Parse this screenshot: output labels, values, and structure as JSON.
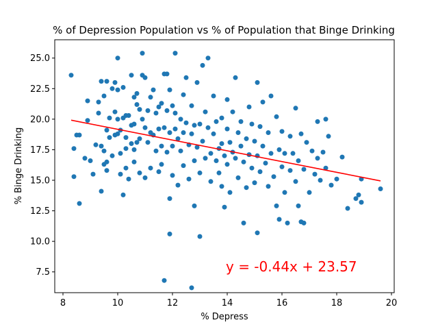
{
  "chart_data": {
    "type": "scatter",
    "title": "% of Depression Population vs % of Population that Binge Drinking",
    "xlabel": "% Depress",
    "ylabel": "% Binge Drinking",
    "xlim": [
      7.7,
      20.1
    ],
    "ylim": [
      5.8,
      26.5
    ],
    "xticks": [
      8,
      10,
      12,
      14,
      16,
      18,
      20
    ],
    "yticks": [
      7.5,
      10.0,
      12.5,
      15.0,
      17.5,
      20.0,
      22.5,
      25.0
    ],
    "grid": false,
    "point_color": "#1f77b4",
    "regression": {
      "slope": -0.44,
      "intercept": 23.57,
      "x_range": [
        8.3,
        19.6
      ],
      "color": "#ff0000",
      "equation": "y = -0.44x + 23.57",
      "equation_color": "#ff0000"
    },
    "points": [
      [
        8.3,
        23.6
      ],
      [
        8.4,
        17.6
      ],
      [
        8.4,
        15.3
      ],
      [
        8.5,
        18.7
      ],
      [
        8.6,
        18.7
      ],
      [
        8.6,
        13.1
      ],
      [
        8.8,
        16.8
      ],
      [
        8.9,
        19.9
      ],
      [
        8.9,
        21.5
      ],
      [
        9.0,
        16.6
      ],
      [
        9.1,
        15.5
      ],
      [
        9.2,
        17.9
      ],
      [
        9.3,
        21.4
      ],
      [
        9.3,
        20.5
      ],
      [
        9.4,
        23.1
      ],
      [
        9.4,
        17.8
      ],
      [
        9.4,
        14.1
      ],
      [
        9.5,
        21.9
      ],
      [
        9.5,
        17.4
      ],
      [
        9.5,
        16.3
      ],
      [
        9.6,
        23.1
      ],
      [
        9.6,
        16.5
      ],
      [
        9.6,
        15.8
      ],
      [
        9.6,
        19.1
      ],
      [
        9.7,
        20.1
      ],
      [
        9.7,
        18.5
      ],
      [
        9.8,
        22.5
      ],
      [
        9.8,
        17.0
      ],
      [
        9.9,
        23.0
      ],
      [
        9.9,
        20.6
      ],
      [
        9.9,
        18.7
      ],
      [
        10.0,
        25.0
      ],
      [
        10.0,
        22.4
      ],
      [
        10.0,
        20.0
      ],
      [
        10.0,
        18.8
      ],
      [
        10.1,
        19.1
      ],
      [
        10.1,
        17.2
      ],
      [
        10.1,
        15.5
      ],
      [
        10.2,
        22.6
      ],
      [
        10.2,
        20.1
      ],
      [
        10.2,
        13.8
      ],
      [
        10.3,
        20.3
      ],
      [
        10.3,
        18.5
      ],
      [
        10.3,
        17.6
      ],
      [
        10.3,
        16.0
      ],
      [
        10.4,
        20.3
      ],
      [
        10.4,
        15.1
      ],
      [
        10.5,
        23.6
      ],
      [
        10.5,
        19.5
      ],
      [
        10.5,
        18.0
      ],
      [
        10.6,
        21.8
      ],
      [
        10.6,
        19.6
      ],
      [
        10.6,
        17.5
      ],
      [
        10.6,
        16.5
      ],
      [
        10.7,
        22.1
      ],
      [
        10.7,
        21.2
      ],
      [
        10.7,
        18.1
      ],
      [
        10.8,
        20.8
      ],
      [
        10.8,
        18.4
      ],
      [
        10.8,
        15.6
      ],
      [
        10.9,
        23.6
      ],
      [
        10.9,
        20.0
      ],
      [
        10.9,
        25.4
      ],
      [
        11.0,
        23.4
      ],
      [
        11.0,
        19.3
      ],
      [
        11.0,
        15.2
      ],
      [
        11.1,
        20.7
      ],
      [
        11.1,
        18.1
      ],
      [
        11.2,
        21.8
      ],
      [
        11.2,
        18.9
      ],
      [
        11.2,
        16.0
      ],
      [
        11.3,
        22.4
      ],
      [
        11.3,
        18.7
      ],
      [
        11.4,
        20.5
      ],
      [
        11.4,
        17.4
      ],
      [
        11.5,
        21.0
      ],
      [
        11.5,
        19.2
      ],
      [
        11.5,
        15.7
      ],
      [
        11.6,
        21.3
      ],
      [
        11.6,
        17.8
      ],
      [
        11.6,
        16.3
      ],
      [
        11.7,
        23.7
      ],
      [
        11.7,
        19.3
      ],
      [
        11.7,
        6.8
      ],
      [
        11.8,
        20.7
      ],
      [
        11.8,
        17.3
      ],
      [
        11.8,
        23.7
      ],
      [
        11.9,
        22.4
      ],
      [
        11.9,
        18.9
      ],
      [
        11.9,
        13.5
      ],
      [
        11.9,
        10.6
      ],
      [
        12.0,
        21.1
      ],
      [
        12.0,
        17.8
      ],
      [
        12.0,
        15.4
      ],
      [
        12.1,
        20.5
      ],
      [
        12.1,
        19.2
      ],
      [
        12.1,
        25.4
      ],
      [
        12.2,
        18.4
      ],
      [
        12.2,
        14.6
      ],
      [
        12.3,
        20.0
      ],
      [
        12.3,
        17.4
      ],
      [
        12.4,
        22.0
      ],
      [
        12.4,
        18.9
      ],
      [
        12.4,
        16.2
      ],
      [
        12.5,
        19.7
      ],
      [
        12.5,
        23.4
      ],
      [
        12.6,
        17.9
      ],
      [
        12.6,
        15.1
      ],
      [
        12.7,
        18.8
      ],
      [
        12.7,
        21.1
      ],
      [
        12.7,
        6.2
      ],
      [
        12.8,
        19.5
      ],
      [
        12.8,
        16.6
      ],
      [
        12.8,
        12.9
      ],
      [
        12.9,
        23.0
      ],
      [
        12.9,
        17.7
      ],
      [
        13.0,
        19.6
      ],
      [
        13.0,
        15.6
      ],
      [
        13.0,
        10.4
      ],
      [
        13.1,
        18.2
      ],
      [
        13.1,
        24.4
      ],
      [
        13.2,
        20.6
      ],
      [
        13.2,
        16.8
      ],
      [
        13.3,
        19.3
      ],
      [
        13.3,
        25.0
      ],
      [
        13.4,
        17.2
      ],
      [
        13.4,
        14.9
      ],
      [
        13.5,
        18.8
      ],
      [
        13.5,
        21.9
      ],
      [
        13.6,
        16.6
      ],
      [
        13.6,
        19.8
      ],
      [
        13.7,
        17.6
      ],
      [
        13.7,
        15.6
      ],
      [
        13.8,
        20.1
      ],
      [
        13.8,
        18.0
      ],
      [
        13.8,
        14.5
      ],
      [
        13.9,
        12.8
      ],
      [
        13.9,
        17.0
      ],
      [
        14.0,
        21.6
      ],
      [
        14.0,
        19.2
      ],
      [
        14.0,
        16.3
      ],
      [
        14.1,
        18.1
      ],
      [
        14.1,
        14.0
      ],
      [
        14.2,
        17.3
      ],
      [
        14.2,
        20.6
      ],
      [
        14.3,
        23.4
      ],
      [
        14.3,
        16.8
      ],
      [
        14.4,
        18.9
      ],
      [
        14.4,
        15.2
      ],
      [
        14.5,
        17.8
      ],
      [
        14.5,
        19.8
      ],
      [
        14.6,
        16.5
      ],
      [
        14.6,
        11.5
      ],
      [
        14.7,
        18.4
      ],
      [
        14.7,
        14.4
      ],
      [
        14.8,
        17.1
      ],
      [
        14.8,
        21.0
      ],
      [
        14.9,
        19.6
      ],
      [
        14.9,
        16.0
      ],
      [
        15.0,
        18.2
      ],
      [
        15.0,
        14.8
      ],
      [
        15.1,
        23.0
      ],
      [
        15.1,
        17.0
      ],
      [
        15.1,
        10.7
      ],
      [
        15.2,
        19.4
      ],
      [
        15.2,
        15.7
      ],
      [
        15.3,
        17.8
      ],
      [
        15.3,
        21.4
      ],
      [
        15.4,
        16.4
      ],
      [
        15.5,
        18.9
      ],
      [
        15.5,
        14.5
      ],
      [
        15.6,
        21.9
      ],
      [
        15.6,
        17.2
      ],
      [
        15.7,
        15.3
      ],
      [
        15.8,
        20.2
      ],
      [
        15.8,
        12.9
      ],
      [
        15.9,
        17.5
      ],
      [
        15.9,
        11.8
      ],
      [
        16.0,
        19.0
      ],
      [
        16.0,
        16.1
      ],
      [
        16.1,
        17.2
      ],
      [
        16.1,
        14.0
      ],
      [
        16.2,
        11.5
      ],
      [
        16.3,
        18.6
      ],
      [
        16.3,
        15.8
      ],
      [
        16.4,
        17.2
      ],
      [
        16.5,
        20.9
      ],
      [
        16.5,
        14.9
      ],
      [
        16.6,
        16.6
      ],
      [
        16.6,
        12.9
      ],
      [
        16.7,
        18.8
      ],
      [
        16.7,
        11.6
      ],
      [
        16.8,
        15.9
      ],
      [
        16.8,
        11.5
      ],
      [
        16.9,
        18.1
      ],
      [
        17.0,
        14.0
      ],
      [
        17.1,
        17.4
      ],
      [
        17.2,
        15.5
      ],
      [
        17.3,
        19.8
      ],
      [
        17.3,
        16.8
      ],
      [
        17.4,
        15.0
      ],
      [
        17.5,
        17.3
      ],
      [
        17.6,
        20.0
      ],
      [
        17.6,
        16.0
      ],
      [
        17.7,
        18.6
      ],
      [
        17.8,
        14.6
      ],
      [
        18.0,
        15.1
      ],
      [
        18.2,
        16.9
      ],
      [
        18.4,
        12.7
      ],
      [
        18.7,
        13.5
      ],
      [
        18.8,
        13.8
      ],
      [
        18.9,
        15.1
      ],
      [
        18.9,
        13.2
      ],
      [
        19.6,
        14.3
      ]
    ]
  }
}
